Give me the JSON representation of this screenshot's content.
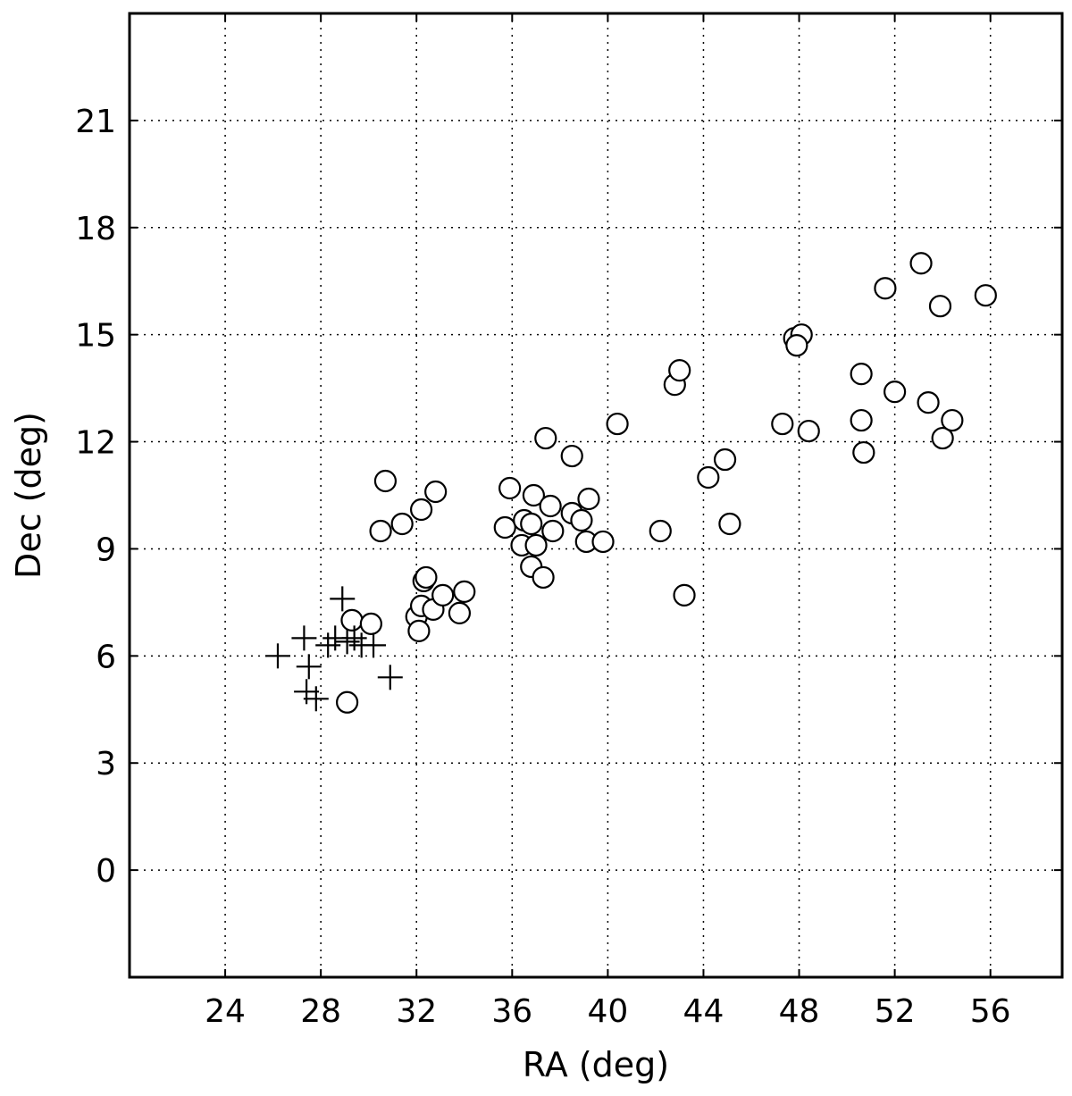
{
  "chart_data": {
    "type": "scatter",
    "title": "",
    "xlabel": "RA (deg)",
    "ylabel": "Dec (deg)",
    "xlim": [
      20,
      59
    ],
    "ylim": [
      -3,
      24
    ],
    "xticks": [
      24,
      28,
      32,
      36,
      40,
      44,
      48,
      52,
      56
    ],
    "yticks": [
      0,
      3,
      6,
      9,
      12,
      15,
      18,
      21
    ],
    "grid": true,
    "legend": "none",
    "series": [
      {
        "marker": "circle",
        "points": [
          [
            29.1,
            4.7
          ],
          [
            29.3,
            7.0
          ],
          [
            30.1,
            6.9
          ],
          [
            30.5,
            9.5
          ],
          [
            30.7,
            10.9
          ],
          [
            31.4,
            9.7
          ],
          [
            32.0,
            7.1
          ],
          [
            32.1,
            6.7
          ],
          [
            32.2,
            7.4
          ],
          [
            32.3,
            8.1
          ],
          [
            32.2,
            10.1
          ],
          [
            32.4,
            8.2
          ],
          [
            32.7,
            7.3
          ],
          [
            32.8,
            10.6
          ],
          [
            33.1,
            7.7
          ],
          [
            33.8,
            7.2
          ],
          [
            34.0,
            7.8
          ],
          [
            35.7,
            9.6
          ],
          [
            35.9,
            10.7
          ],
          [
            36.4,
            9.1
          ],
          [
            36.5,
            9.8
          ],
          [
            36.8,
            9.7
          ],
          [
            36.8,
            8.5
          ],
          [
            36.9,
            10.5
          ],
          [
            37.0,
            9.1
          ],
          [
            37.3,
            8.2
          ],
          [
            37.4,
            12.1
          ],
          [
            37.6,
            10.2
          ],
          [
            37.7,
            9.5
          ],
          [
            38.5,
            11.6
          ],
          [
            38.5,
            10.0
          ],
          [
            38.9,
            9.8
          ],
          [
            39.1,
            9.2
          ],
          [
            39.2,
            10.4
          ],
          [
            39.8,
            9.2
          ],
          [
            40.4,
            12.5
          ],
          [
            42.2,
            9.5
          ],
          [
            42.8,
            13.6
          ],
          [
            43.0,
            14.0
          ],
          [
            43.2,
            7.7
          ],
          [
            44.2,
            11.0
          ],
          [
            44.9,
            11.5
          ],
          [
            45.1,
            9.7
          ],
          [
            47.3,
            12.5
          ],
          [
            47.8,
            14.9
          ],
          [
            48.1,
            15.0
          ],
          [
            47.9,
            14.7
          ],
          [
            48.4,
            12.3
          ],
          [
            50.6,
            13.9
          ],
          [
            50.6,
            12.6
          ],
          [
            50.7,
            11.7
          ],
          [
            51.6,
            16.3
          ],
          [
            52.0,
            13.4
          ],
          [
            53.1,
            17.0
          ],
          [
            53.4,
            13.1
          ],
          [
            53.9,
            15.8
          ],
          [
            54.0,
            12.1
          ],
          [
            54.4,
            12.6
          ],
          [
            55.8,
            16.1
          ]
        ]
      },
      {
        "marker": "plus",
        "points": [
          [
            26.2,
            6.0
          ],
          [
            27.3,
            6.5
          ],
          [
            27.5,
            5.7
          ],
          [
            27.4,
            5.0
          ],
          [
            27.8,
            4.8
          ],
          [
            28.3,
            6.3
          ],
          [
            28.6,
            6.5
          ],
          [
            28.9,
            7.6
          ],
          [
            29.1,
            6.4
          ],
          [
            29.4,
            6.5
          ],
          [
            29.7,
            6.3
          ],
          [
            30.2,
            6.3
          ],
          [
            30.9,
            5.4
          ]
        ]
      }
    ]
  }
}
